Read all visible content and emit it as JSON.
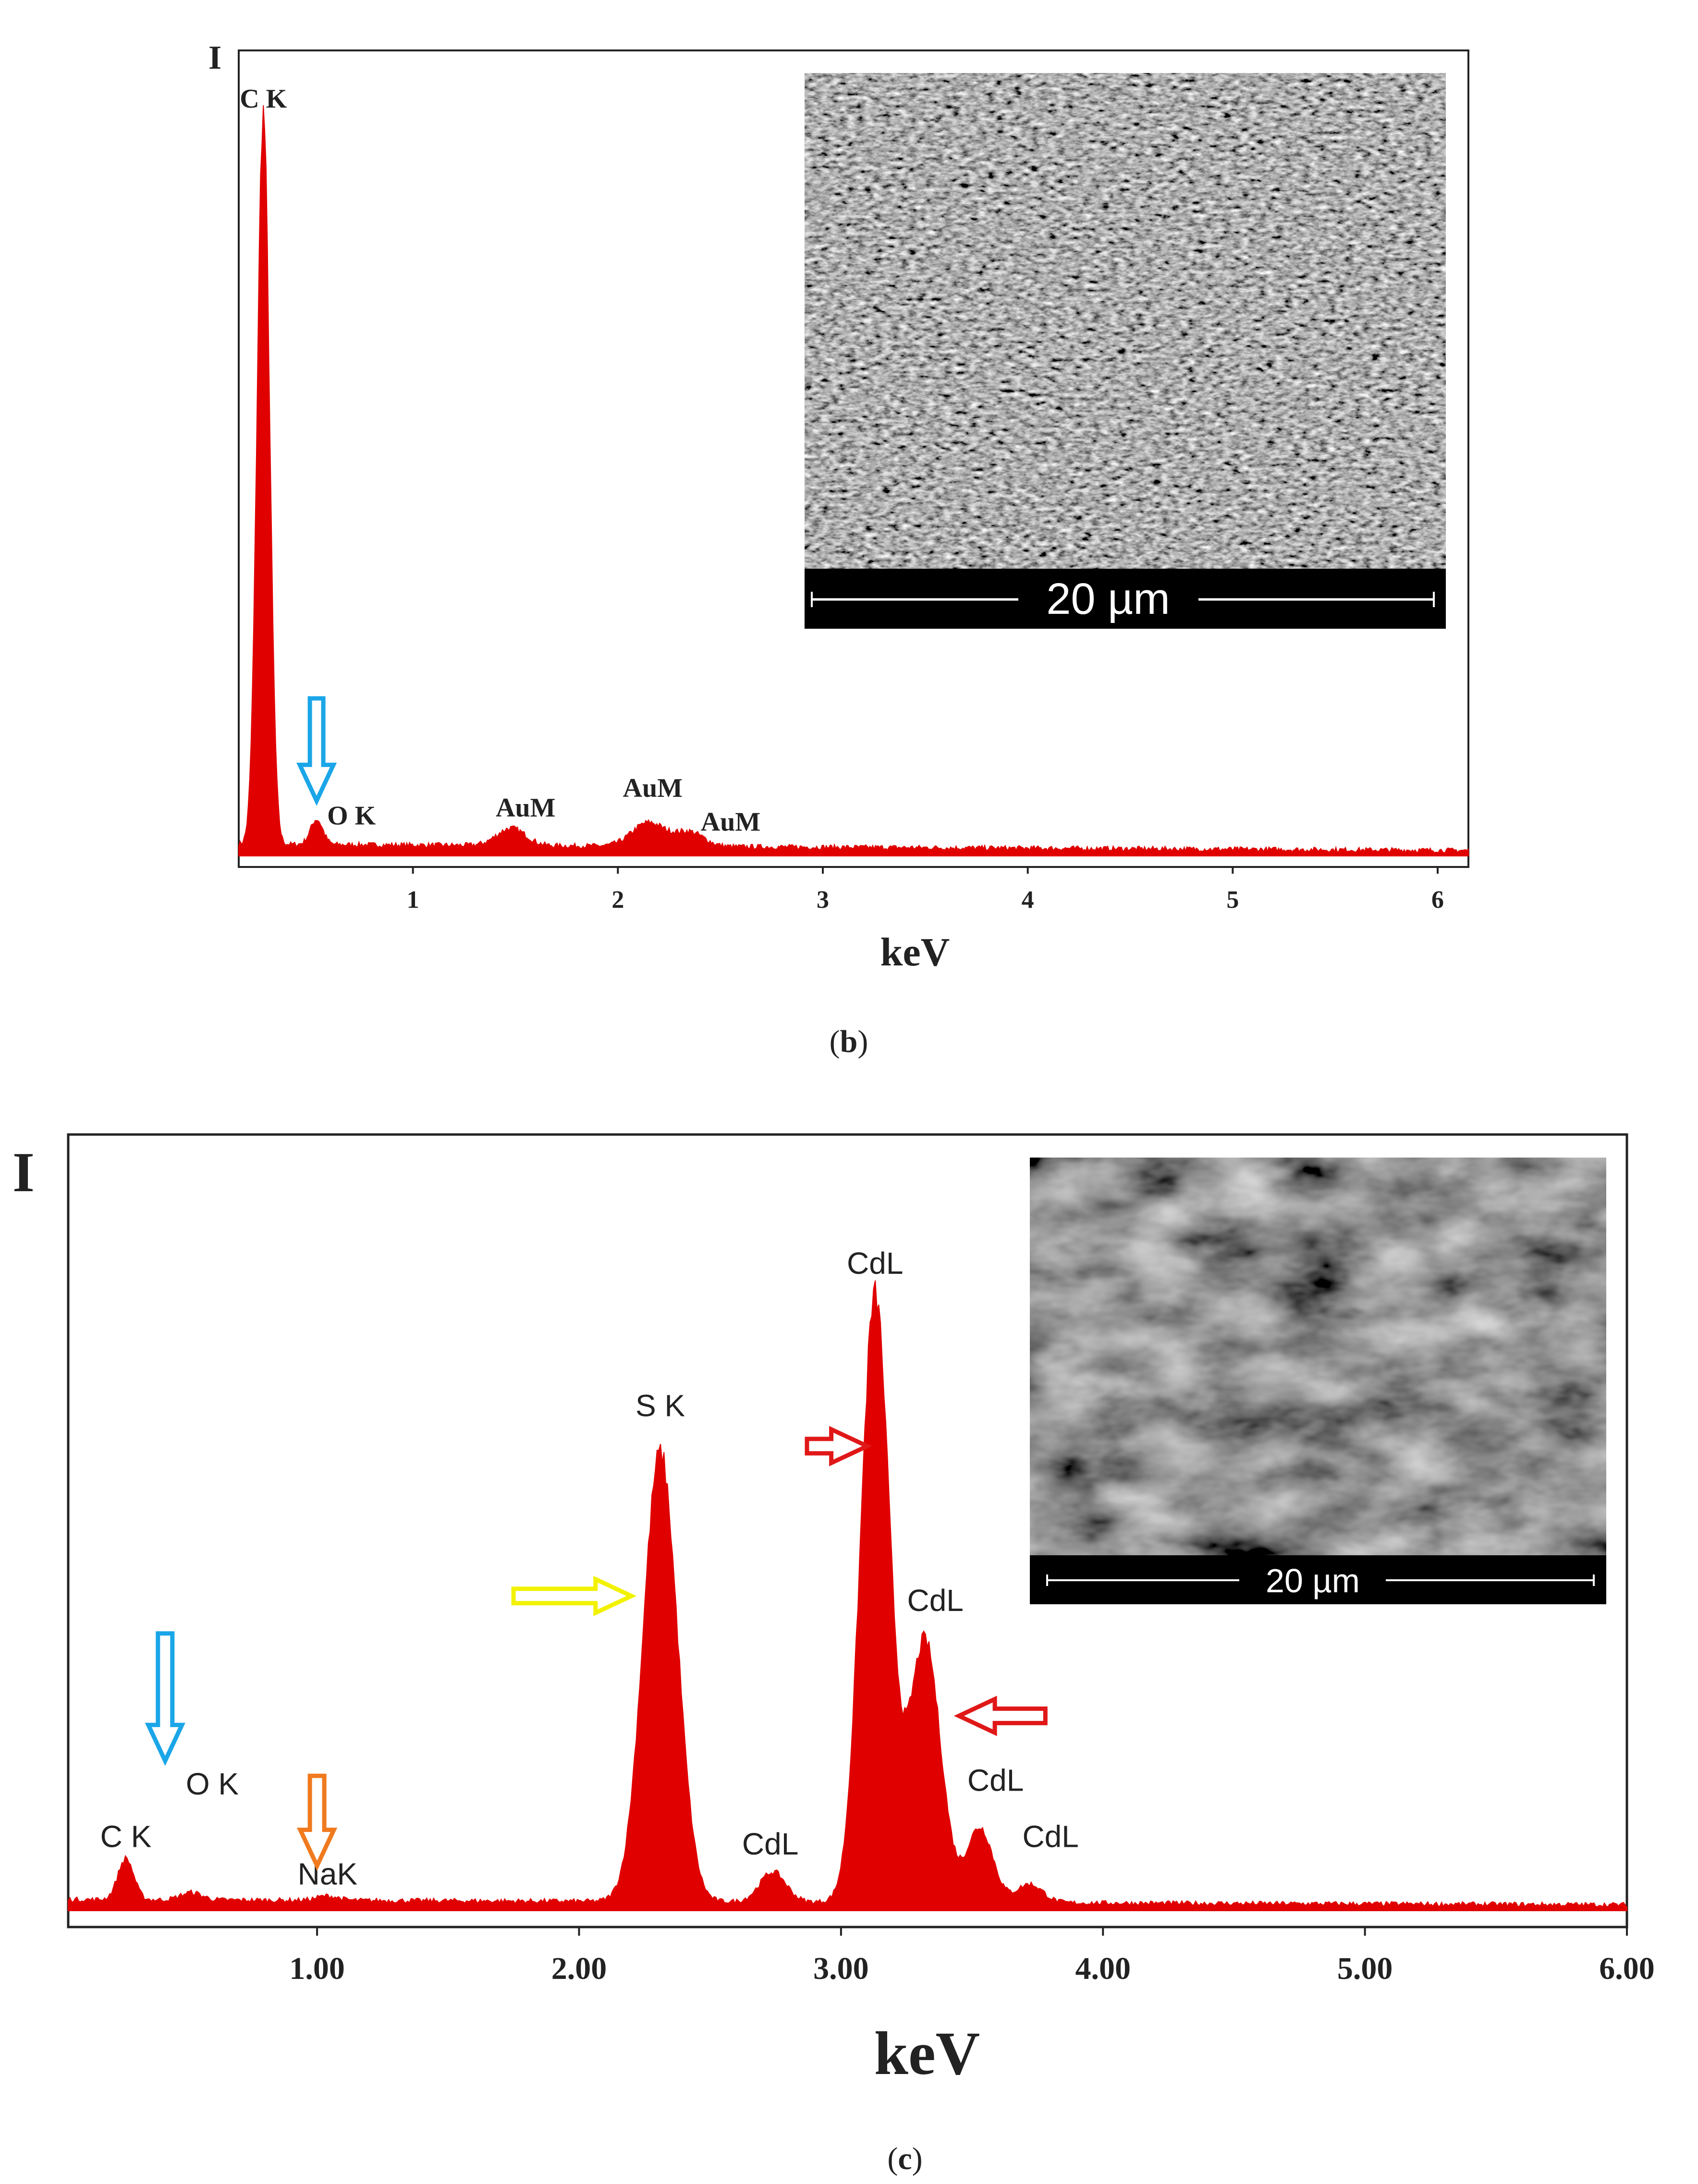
{
  "colors": {
    "spectrum": "#e00000",
    "arrow_oxygen": "#1aa6e8",
    "arrow_sodium": "#f07a1e",
    "arrow_sulfur": "#f2f200",
    "arrow_cadmium": "#e01818",
    "sem_background": "#3a3a3a",
    "scale_bar": "#000000",
    "scale_text": "#ffffff"
  },
  "panels": {
    "b": {
      "caption_open": "(",
      "caption_letter": "b",
      "caption_close": ")"
    },
    "c": {
      "caption_open": "(",
      "caption_letter": "c",
      "caption_close": ")"
    }
  },
  "chart_data": [
    {
      "panel": "b",
      "type": "area",
      "title": "",
      "xlabel": "keV",
      "ylabel": "I",
      "xlim": [
        0.15,
        6.15
      ],
      "ylim": [
        0,
        100
      ],
      "x_ticks": [
        1,
        2,
        3,
        4,
        5,
        6
      ],
      "x_tick_labels": [
        "1",
        "2",
        "3",
        "4",
        "5",
        "6"
      ],
      "grid": false,
      "legend": "none",
      "peaks": [
        {
          "label": "C K",
          "center": 0.27,
          "height": 93,
          "width": 0.03
        },
        {
          "label": "O K",
          "center": 0.53,
          "height": 3.2,
          "width": 0.03
        },
        {
          "label": "AuM",
          "center": 1.48,
          "height": 2.2,
          "width": 0.07
        },
        {
          "label": "AuM",
          "center": 2.15,
          "height": 3.0,
          "width": 0.08
        },
        {
          "label": "AuM",
          "center": 2.35,
          "height": 1.8,
          "width": 0.07
        }
      ],
      "baseline": {
        "start": 1.5,
        "end": 0.7
      },
      "annotations": [
        {
          "text": "C K",
          "x": 0.27,
          "y": 95
        },
        {
          "text": "O K",
          "x": 0.7,
          "y": 4
        },
        {
          "text": "AuM",
          "x": 1.55,
          "y": 5
        },
        {
          "text": "AuM",
          "x": 2.17,
          "y": 7.5
        },
        {
          "text": "AuM",
          "x": 2.55,
          "y": 3.2
        }
      ],
      "arrows": [
        {
          "element": "O",
          "direction": "down",
          "color": "arrow_oxygen",
          "x": 0.53,
          "y_from": 20,
          "y_to": 7
        }
      ],
      "inset": {
        "scale_label": "20 µm"
      }
    },
    {
      "panel": "c",
      "type": "area",
      "title": "",
      "xlabel": "keV",
      "ylabel": "I",
      "xlim": [
        0.05,
        6.0
      ],
      "ylim": [
        0,
        100
      ],
      "x_ticks": [
        1,
        2,
        3,
        4,
        5,
        6
      ],
      "x_tick_labels": [
        "1.00",
        "2.00",
        "3.00",
        "4.00",
        "5.00",
        "6.00"
      ],
      "grid": false,
      "legend": "none",
      "peaks": [
        {
          "label": "C K",
          "center": 0.27,
          "height": 5.5,
          "width": 0.03
        },
        {
          "label": "O K",
          "center": 0.52,
          "height": 1.0,
          "width": 0.04
        },
        {
          "label": "NaK",
          "center": 1.04,
          "height": 0.6,
          "width": 0.04
        },
        {
          "label": "S K",
          "center": 2.31,
          "height": 60,
          "width": 0.065
        },
        {
          "label": "CdL",
          "center": 2.74,
          "height": 4.0,
          "width": 0.05
        },
        {
          "label": "CdL",
          "center": 3.13,
          "height": 81,
          "width": 0.055
        },
        {
          "label": "CdL",
          "center": 3.32,
          "height": 35,
          "width": 0.06
        },
        {
          "label": "CdL",
          "center": 3.53,
          "height": 10,
          "width": 0.05
        },
        {
          "label": "CdL",
          "center": 3.72,
          "height": 2.5,
          "width": 0.05
        }
      ],
      "baseline": {
        "start": 1.5,
        "end": 0.8
      },
      "annotations": [
        {
          "text": "C K",
          "x": 0.27,
          "y": 8.5
        },
        {
          "text": "O K",
          "x": 0.6,
          "y": 15.5
        },
        {
          "text": "NaK",
          "x": 1.04,
          "y": 3.5
        },
        {
          "text": "S K",
          "x": 2.31,
          "y": 66
        },
        {
          "text": "CdL",
          "x": 2.73,
          "y": 7.5
        },
        {
          "text": "CdL",
          "x": 3.13,
          "y": 85
        },
        {
          "text": "CdL",
          "x": 3.36,
          "y": 40
        },
        {
          "text": "CdL",
          "x": 3.59,
          "y": 16
        },
        {
          "text": "CdL",
          "x": 3.8,
          "y": 8.5
        }
      ],
      "arrows": [
        {
          "element": "O",
          "direction": "down",
          "color": "arrow_oxygen",
          "x": 0.42,
          "y_from": 37,
          "y_to": 20
        },
        {
          "element": "Na",
          "direction": "down",
          "color": "arrow_sodium",
          "x": 1.0,
          "y_from": 18,
          "y_to": 6
        },
        {
          "element": "S",
          "direction": "right",
          "color": "arrow_sulfur",
          "x_from": 1.75,
          "x_to": 2.2,
          "y": 42
        },
        {
          "element": "Cd",
          "direction": "right",
          "color": "arrow_cadmium",
          "x_from": 2.87,
          "x_to": 3.1,
          "y": 62
        },
        {
          "element": "Cd",
          "direction": "left",
          "color": "arrow_cadmium",
          "x_from": 3.78,
          "x_to": 3.45,
          "y": 26
        }
      ],
      "inset": {
        "scale_label": "20 µm"
      }
    }
  ]
}
